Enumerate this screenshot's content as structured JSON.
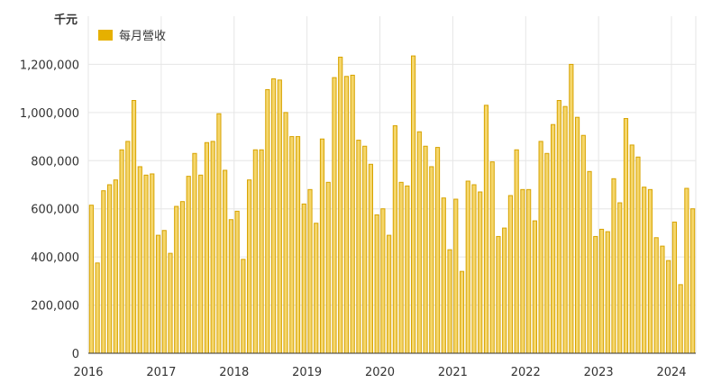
{
  "chart_data": {
    "type": "bar",
    "unit_label": "千元",
    "series": [
      {
        "name": "每月營收",
        "color": "#e6b000",
        "x": [
          "2016-01",
          "2016-02",
          "2016-03",
          "2016-04",
          "2016-05",
          "2016-06",
          "2016-07",
          "2016-08",
          "2016-09",
          "2016-10",
          "2016-11",
          "2016-12",
          "2017-01",
          "2017-02",
          "2017-03",
          "2017-04",
          "2017-05",
          "2017-06",
          "2017-07",
          "2017-08",
          "2017-09",
          "2017-10",
          "2017-11",
          "2017-12",
          "2018-01",
          "2018-02",
          "2018-03",
          "2018-04",
          "2018-05",
          "2018-06",
          "2018-07",
          "2018-08",
          "2018-09",
          "2018-10",
          "2018-11",
          "2018-12",
          "2019-01",
          "2019-02",
          "2019-03",
          "2019-04",
          "2019-05",
          "2019-06",
          "2019-07",
          "2019-08",
          "2019-09",
          "2019-10",
          "2019-11",
          "2019-12",
          "2020-01",
          "2020-02",
          "2020-03",
          "2020-04",
          "2020-05",
          "2020-06",
          "2020-07",
          "2020-08",
          "2020-09",
          "2020-10",
          "2020-11",
          "2020-12",
          "2021-01",
          "2021-02",
          "2021-03",
          "2021-04",
          "2021-05",
          "2021-06",
          "2021-07",
          "2021-08",
          "2021-09",
          "2021-10",
          "2021-11",
          "2021-12",
          "2022-01",
          "2022-02",
          "2022-03",
          "2022-04",
          "2022-05",
          "2022-06",
          "2022-07",
          "2022-08",
          "2022-09",
          "2022-10",
          "2022-11",
          "2022-12",
          "2023-01",
          "2023-02",
          "2023-03",
          "2023-04",
          "2023-05",
          "2023-06",
          "2023-07",
          "2023-08",
          "2023-09",
          "2023-10",
          "2023-11",
          "2023-12",
          "2024-01",
          "2024-02",
          "2024-03",
          "2024-04"
        ],
        "values": [
          615000,
          375000,
          675000,
          700000,
          720000,
          845000,
          880000,
          1050000,
          775000,
          740000,
          745000,
          490000,
          510000,
          415000,
          610000,
          630000,
          735000,
          830000,
          740000,
          875000,
          880000,
          995000,
          760000,
          555000,
          590000,
          390000,
          720000,
          845000,
          845000,
          1095000,
          1140000,
          1135000,
          1000000,
          900000,
          900000,
          620000,
          680000,
          540000,
          890000,
          710000,
          1145000,
          1230000,
          1150000,
          1155000,
          885000,
          860000,
          785000,
          575000,
          600000,
          490000,
          945000,
          710000,
          695000,
          1235000,
          920000,
          860000,
          775000,
          855000,
          645000,
          430000,
          640000,
          340000,
          715000,
          700000,
          670000,
          1030000,
          795000,
          485000,
          520000,
          655000,
          845000,
          680000,
          680000,
          550000,
          880000,
          830000,
          950000,
          1050000,
          1025000,
          1200000,
          980000,
          905000,
          755000,
          485000,
          515000,
          505000,
          725000,
          625000,
          975000,
          865000,
          815000,
          690000,
          680000,
          480000,
          445000,
          385000,
          545000,
          285000,
          685000,
          600000
        ]
      }
    ],
    "x_tick_labels": [
      "2016",
      "2017",
      "2018",
      "2019",
      "2020",
      "2021",
      "2022",
      "2023",
      "2024"
    ],
    "y_tick_labels": [
      "0",
      "200,000",
      "400,000",
      "600,000",
      "800,000",
      "1,000,000",
      "1,200,000"
    ],
    "y_ticks": [
      0,
      200000,
      400000,
      600000,
      800000,
      1000000,
      1200000
    ],
    "ylim": [
      0,
      1400000
    ],
    "xlim": [
      "2016-01",
      "2024-04"
    ],
    "grid": true,
    "legend_position": "top-left"
  }
}
